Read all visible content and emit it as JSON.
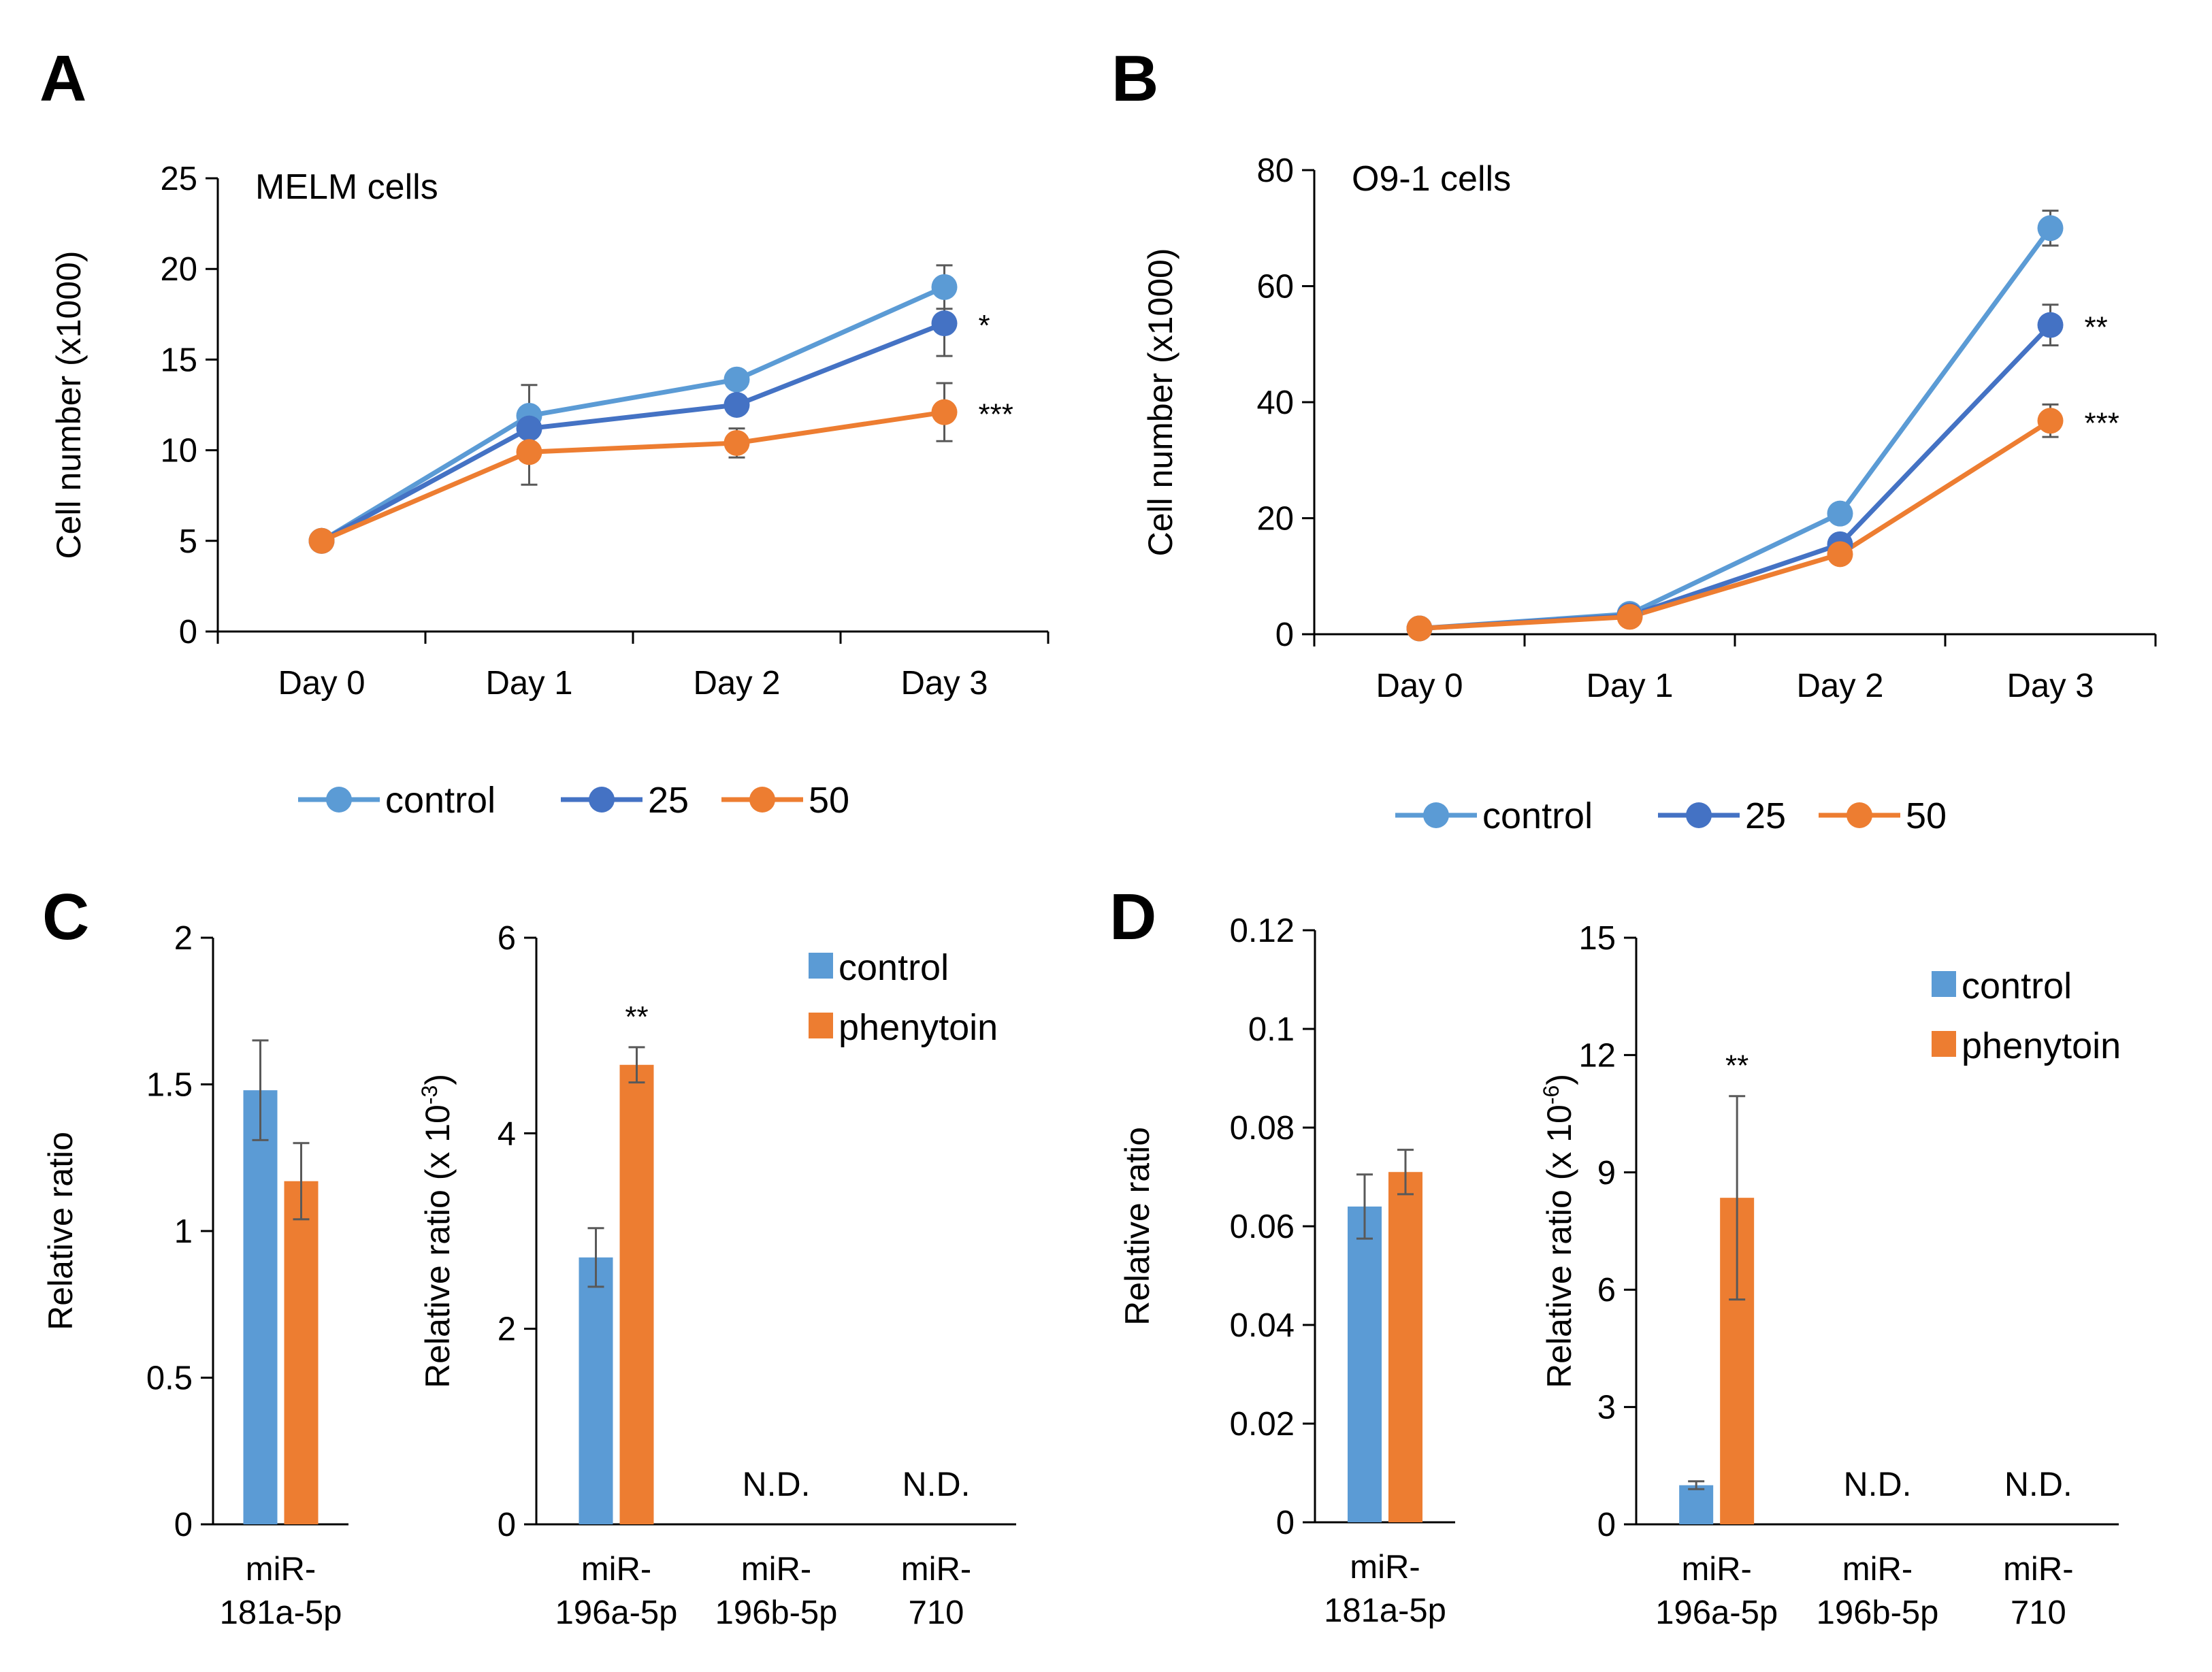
{
  "figure": {
    "panels": [
      "A",
      "B",
      "C",
      "D"
    ]
  },
  "colors": {
    "control": "#5b9bd5",
    "dose25": "#4472c4",
    "dose50": "#ed7d31",
    "phenytoin": "#ed7d31",
    "error_bar": "#595959",
    "axis": "#000000"
  },
  "chart_data": [
    {
      "panel": "A",
      "type": "line",
      "title": "MELM cells",
      "ylabel": "Cell number (x1000)",
      "xlabel": "",
      "ylim": [
        0,
        25
      ],
      "yticks": [
        0,
        5,
        10,
        15,
        20,
        25
      ],
      "categories": [
        "Day 0",
        "Day 1",
        "Day 2",
        "Day 3"
      ],
      "series": [
        {
          "name": "control",
          "values": [
            5.0,
            11.9,
            13.9,
            19.0
          ],
          "errors": [
            0,
            1.7,
            0.3,
            1.2
          ],
          "color": "#5b9bd5"
        },
        {
          "name": "25",
          "values": [
            5.0,
            11.2,
            12.5,
            17.0
          ],
          "errors": [
            0,
            0.3,
            0.4,
            1.8
          ],
          "color": "#4472c4"
        },
        {
          "name": "50",
          "values": [
            5.0,
            9.9,
            10.4,
            12.1
          ],
          "errors": [
            0,
            1.8,
            0.8,
            1.6
          ],
          "color": "#ed7d31"
        }
      ],
      "annotations": [
        {
          "series": "25",
          "category": "Day 3",
          "text": "*"
        },
        {
          "series": "50",
          "category": "Day 3",
          "text": "***"
        }
      ],
      "legend": [
        "control",
        "25",
        "50"
      ]
    },
    {
      "panel": "B",
      "type": "line",
      "title": "O9-1 cells",
      "ylabel": "Cell number (x1000)",
      "xlabel": "",
      "ylim": [
        0,
        80
      ],
      "yticks": [
        0,
        20,
        40,
        60,
        80
      ],
      "categories": [
        "Day 0",
        "Day 1",
        "Day 2",
        "Day 3"
      ],
      "series": [
        {
          "name": "control",
          "values": [
            1.0,
            3.5,
            20.8,
            70.0
          ],
          "errors": [
            0,
            0.5,
            0.8,
            3.0
          ],
          "color": "#5b9bd5"
        },
        {
          "name": "25",
          "values": [
            1.0,
            3.2,
            15.5,
            53.3
          ],
          "errors": [
            0,
            0.4,
            0.8,
            3.5
          ],
          "color": "#4472c4"
        },
        {
          "name": "50",
          "values": [
            1.0,
            3.0,
            13.8,
            36.8
          ],
          "errors": [
            0,
            0.4,
            0.8,
            2.8
          ],
          "color": "#ed7d31"
        }
      ],
      "annotations": [
        {
          "series": "25",
          "category": "Day 3",
          "text": "**"
        },
        {
          "series": "50",
          "category": "Day 3",
          "text": "***"
        }
      ],
      "legend": [
        "control",
        "25",
        "50"
      ]
    },
    {
      "panel": "C",
      "subchart": "left",
      "type": "bar",
      "title": "",
      "ylabel": "Relative ratio",
      "ylim": [
        0,
        2
      ],
      "yticks": [
        "0",
        "0.5",
        "1",
        "1.5",
        "2"
      ],
      "categories": [
        [
          "miR-",
          "181a-5p"
        ]
      ],
      "series": [
        {
          "name": "control",
          "values": [
            1.48
          ],
          "errors": [
            0.17
          ],
          "color": "#5b9bd5"
        },
        {
          "name": "phenytoin",
          "values": [
            1.17
          ],
          "errors": [
            0.13
          ],
          "color": "#ed7d31"
        }
      ]
    },
    {
      "panel": "C",
      "subchart": "right",
      "type": "bar",
      "title": "",
      "ylabel": "Relative ratio (x 10",
      "ylabel_exponent": "-3",
      "ylabel_suffix": ")",
      "ylim": [
        0,
        6
      ],
      "yticks": [
        "0",
        "2",
        "4",
        "6"
      ],
      "categories": [
        [
          "miR-",
          "196a-5p"
        ],
        [
          "miR-",
          "196b-5p"
        ],
        [
          "miR-",
          "710"
        ]
      ],
      "series": [
        {
          "name": "control",
          "values": [
            2.73,
            null,
            null
          ],
          "errors": [
            0.3,
            null,
            null
          ],
          "color": "#5b9bd5"
        },
        {
          "name": "phenytoin",
          "values": [
            4.7,
            null,
            null
          ],
          "errors": [
            0.18,
            null,
            null
          ],
          "color": "#ed7d31"
        }
      ],
      "annotations": [
        {
          "category": 0,
          "text": "**"
        },
        {
          "category": 1,
          "text": "N.D."
        },
        {
          "category": 2,
          "text": "N.D."
        }
      ],
      "legend": [
        "control",
        "phenytoin"
      ]
    },
    {
      "panel": "D",
      "subchart": "left",
      "type": "bar",
      "title": "",
      "ylabel": "Relative ratio",
      "ylim": [
        0,
        0.12
      ],
      "yticks": [
        "0",
        "0.02",
        "0.04",
        "0.06",
        "0.08",
        "0.1",
        "0.12"
      ],
      "categories": [
        [
          "miR-",
          "181a-5p"
        ]
      ],
      "series": [
        {
          "name": "control",
          "values": [
            0.064
          ],
          "errors": [
            0.0065
          ],
          "color": "#5b9bd5"
        },
        {
          "name": "phenytoin",
          "values": [
            0.071
          ],
          "errors": [
            0.0045
          ],
          "color": "#ed7d31"
        }
      ]
    },
    {
      "panel": "D",
      "subchart": "right",
      "type": "bar",
      "title": "",
      "ylabel": "Relative ratio (x 10",
      "ylabel_exponent": "-6",
      "ylabel_suffix": ")",
      "ylim": [
        0,
        15
      ],
      "yticks": [
        "0",
        "3",
        "6",
        "9",
        "12",
        "15"
      ],
      "categories": [
        [
          "miR-",
          "196a-5p"
        ],
        [
          "miR-",
          "196b-5p"
        ],
        [
          "miR-",
          "710"
        ]
      ],
      "series": [
        {
          "name": "control",
          "values": [
            1.0,
            null,
            null
          ],
          "errors": [
            0.1,
            null,
            null
          ],
          "color": "#5b9bd5"
        },
        {
          "name": "phenytoin",
          "values": [
            8.35,
            null,
            null
          ],
          "errors": [
            2.6,
            null,
            null
          ],
          "color": "#ed7d31"
        }
      ],
      "annotations": [
        {
          "category": 0,
          "text": "**"
        },
        {
          "category": 1,
          "text": "N.D."
        },
        {
          "category": 2,
          "text": "N.D."
        }
      ],
      "legend": [
        "control",
        "phenytoin"
      ]
    }
  ]
}
